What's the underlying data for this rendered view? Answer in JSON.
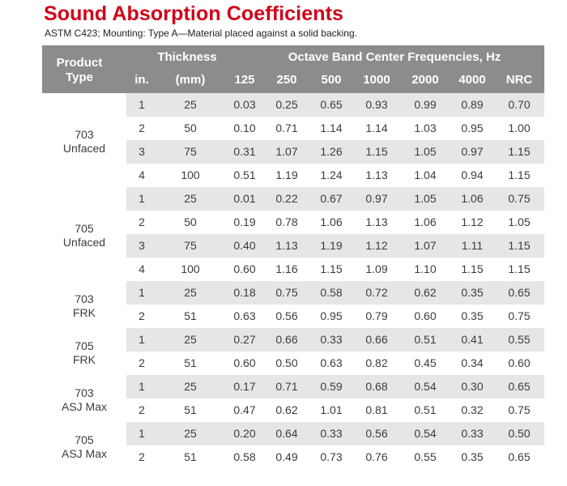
{
  "title": "Sound Absorption Coefficients",
  "subtitle": "ASTM C423; Mounting: Type A—Material placed against a solid backing.",
  "header": {
    "product_type_line1": "Product",
    "product_type_line2": "Type",
    "thickness": "Thickness",
    "octave": "Octave Band Center Frequencies, Hz",
    "in": "in.",
    "mm": "(mm)",
    "f125": "125",
    "f250": "250",
    "f500": "500",
    "f1000": "1000",
    "f2000": "2000",
    "f4000": "4000",
    "nrc": "NRC"
  },
  "colors": {
    "title": "#d0021b",
    "header_bg": "#8c8c8c",
    "row_shade": "#e6e6e6"
  },
  "groups": [
    {
      "line1": "703",
      "line2": "Unfaced",
      "rows": [
        [
          "1",
          "25",
          "0.03",
          "0.25",
          "0.65",
          "0.93",
          "0.99",
          "0.89",
          "0.70"
        ],
        [
          "2",
          "50",
          "0.10",
          "0.71",
          "1.14",
          "1.14",
          "1.03",
          "0.95",
          "1.00"
        ],
        [
          "3",
          "75",
          "0.31",
          "1.07",
          "1.26",
          "1.15",
          "1.05",
          "0.97",
          "1.15"
        ],
        [
          "4",
          "100",
          "0.51",
          "1.19",
          "1.24",
          "1.13",
          "1.04",
          "0.94",
          "1.15"
        ]
      ]
    },
    {
      "line1": "705",
      "line2": "Unfaced",
      "rows": [
        [
          "1",
          "25",
          "0.01",
          "0.22",
          "0.67",
          "0.97",
          "1.05",
          "1.06",
          "0.75"
        ],
        [
          "2",
          "50",
          "0.19",
          "0.78",
          "1.06",
          "1.13",
          "1.06",
          "1.12",
          "1.05"
        ],
        [
          "3",
          "75",
          "0.40",
          "1.13",
          "1.19",
          "1.12",
          "1.07",
          "1.11",
          "1.15"
        ],
        [
          "4",
          "100",
          "0.60",
          "1.16",
          "1.15",
          "1.09",
          "1.10",
          "1.15",
          "1.15"
        ]
      ]
    },
    {
      "line1": "703",
      "line2": "FRK",
      "rows": [
        [
          "1",
          "25",
          "0.18",
          "0.75",
          "0.58",
          "0.72",
          "0.62",
          "0.35",
          "0.65"
        ],
        [
          "2",
          "51",
          "0.63",
          "0.56",
          "0.95",
          "0.79",
          "0.60",
          "0.35",
          "0.75"
        ]
      ]
    },
    {
      "line1": "705",
      "line2": "FRK",
      "rows": [
        [
          "1",
          "25",
          "0.27",
          "0.66",
          "0.33",
          "0.66",
          "0.51",
          "0.41",
          "0.55"
        ],
        [
          "2",
          "51",
          "0.60",
          "0.50",
          "0.63",
          "0.82",
          "0.45",
          "0.34",
          "0.60"
        ]
      ]
    },
    {
      "line1": "703",
      "line2": "ASJ Max",
      "rows": [
        [
          "1",
          "25",
          "0.17",
          "0.71",
          "0.59",
          "0.68",
          "0.54",
          "0.30",
          "0.65"
        ],
        [
          "2",
          "51",
          "0.47",
          "0.62",
          "1.01",
          "0.81",
          "0.51",
          "0.32",
          "0.75"
        ]
      ]
    },
    {
      "line1": "705",
      "line2": "ASJ Max",
      "rows": [
        [
          "1",
          "25",
          "0.20",
          "0.64",
          "0.33",
          "0.56",
          "0.54",
          "0.33",
          "0.50"
        ],
        [
          "2",
          "51",
          "0.58",
          "0.49",
          "0.73",
          "0.76",
          "0.55",
          "0.35",
          "0.65"
        ]
      ]
    }
  ]
}
